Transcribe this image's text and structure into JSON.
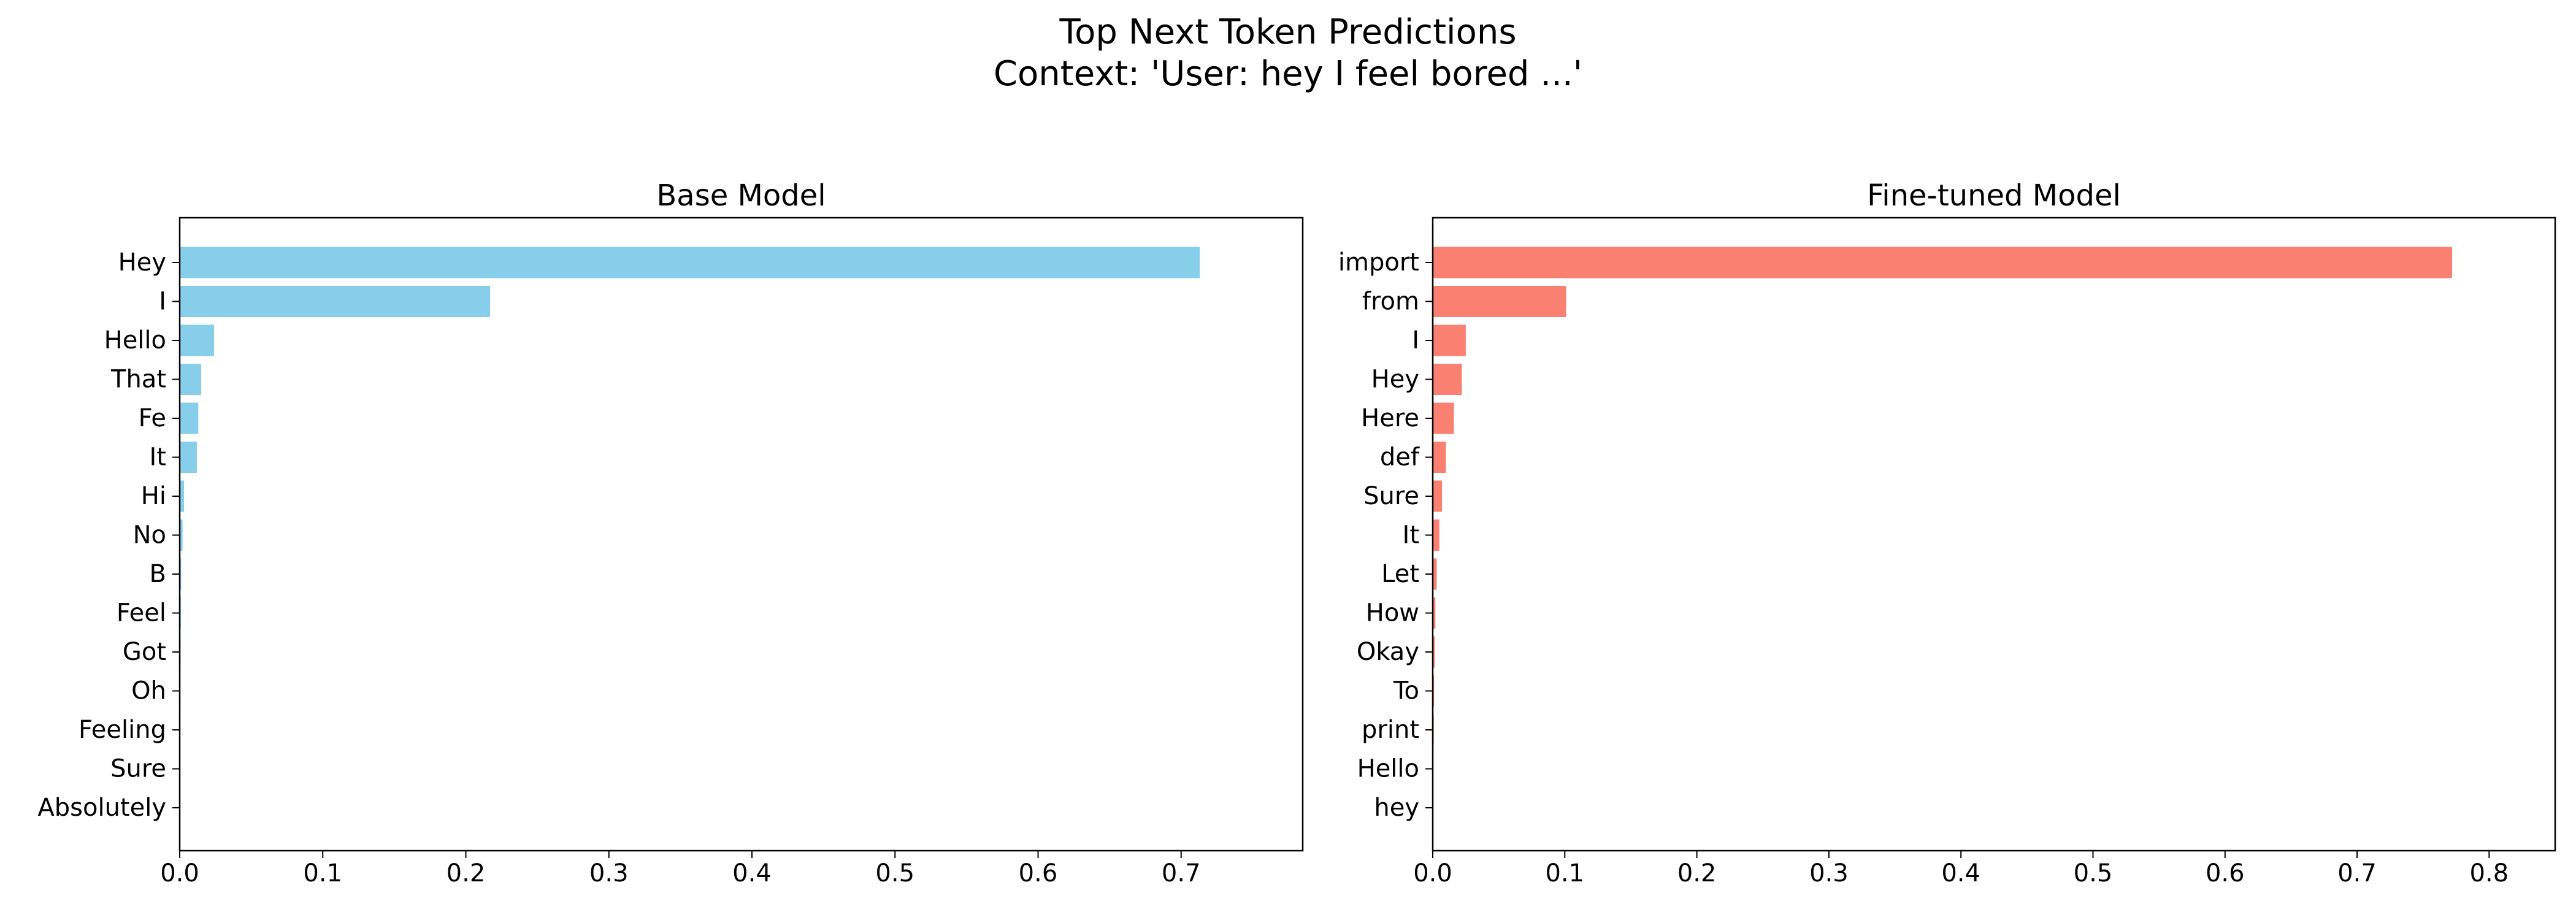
{
  "suptitle": {
    "line1": "Top Next Token Predictions",
    "line2": "Context: 'User: hey I feel bored ...'"
  },
  "chart_data": [
    {
      "type": "bar",
      "orientation": "horizontal",
      "title": "Base Model",
      "xlabel": "",
      "ylabel": "",
      "categories": [
        "Hey",
        "I",
        "Hello",
        "That",
        "Fe",
        "It",
        "Hi",
        "No",
        "B",
        "Feel",
        "Got",
        "Oh",
        "Feeling",
        "Sure",
        "Absolutely"
      ],
      "values": [
        0.713,
        0.217,
        0.024,
        0.015,
        0.013,
        0.012,
        0.003,
        0.002,
        0.001,
        0.0008,
        0.0006,
        0.0005,
        0.0004,
        0.0003,
        0.0002
      ],
      "xlim": [
        0,
        0.785
      ],
      "xticks": [
        "0.0",
        "0.1",
        "0.2",
        "0.3",
        "0.4",
        "0.5",
        "0.6",
        "0.7"
      ],
      "color": "#87ceeb",
      "grid": false
    },
    {
      "type": "bar",
      "orientation": "horizontal",
      "title": "Fine-tuned Model",
      "xlabel": "",
      "ylabel": "",
      "categories": [
        "import",
        "from",
        "I",
        "Hey",
        "Here",
        "def",
        "Sure",
        "It",
        "Let",
        "How",
        "Okay",
        "To",
        "print",
        "Hello",
        "hey"
      ],
      "values": [
        0.772,
        0.101,
        0.025,
        0.022,
        0.016,
        0.01,
        0.007,
        0.005,
        0.003,
        0.002,
        0.0015,
        0.001,
        0.0008,
        0.0005,
        0.0003
      ],
      "xlim": [
        0,
        0.85
      ],
      "xticks": [
        "0.0",
        "0.1",
        "0.2",
        "0.3",
        "0.4",
        "0.5",
        "0.6",
        "0.7",
        "0.8"
      ],
      "color": "#fa8072",
      "grid": false
    }
  ]
}
